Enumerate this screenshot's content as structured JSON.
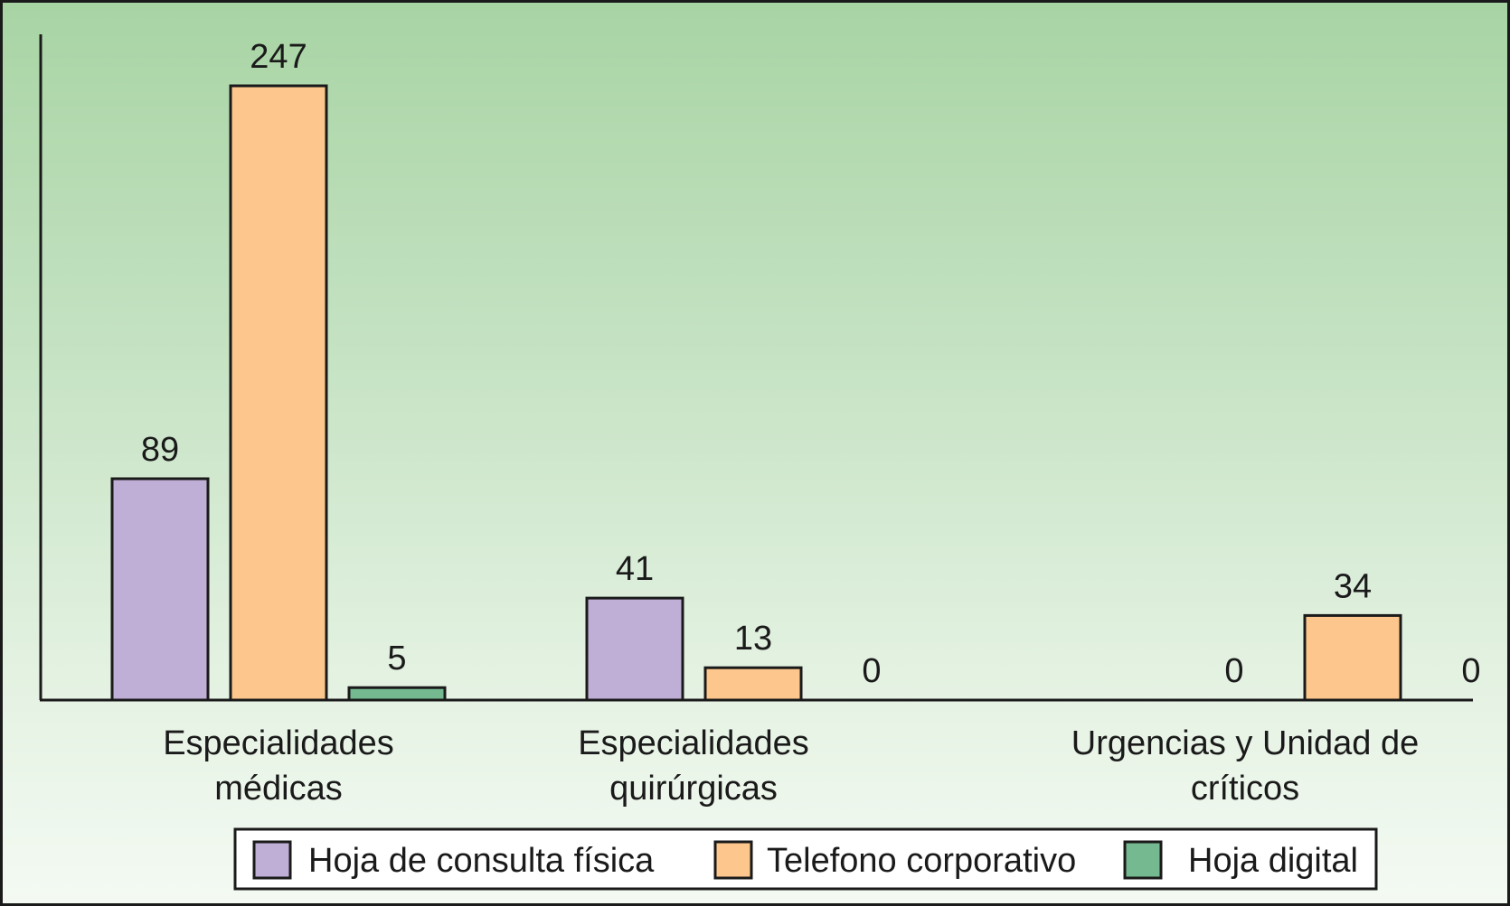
{
  "chart_data": {
    "type": "bar",
    "categories": [
      [
        "Especialidades",
        "médicas"
      ],
      [
        "Especialidades",
        "quirúrgicas"
      ],
      [
        "Urgencias y Unidad de",
        "críticos"
      ]
    ],
    "series": [
      {
        "name": "Hoja de consulta física",
        "color": "#bfaed6",
        "values": [
          89,
          41,
          0
        ]
      },
      {
        "name": "Telefono corporativo",
        "color": "#fdc68c",
        "values": [
          247,
          13,
          34
        ]
      },
      {
        "name": "Hoja digital",
        "color": "#74b98f",
        "values": [
          5,
          0,
          0
        ]
      }
    ],
    "ylim": [
      0,
      250
    ],
    "grid": false,
    "legend_position": "bottom"
  }
}
